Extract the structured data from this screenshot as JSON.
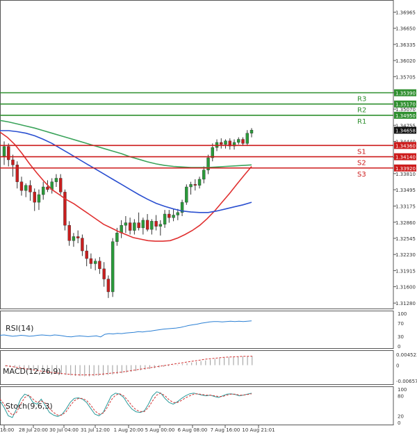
{
  "chart_data": [
    {
      "type": "candlestick",
      "title": "",
      "xlabel": "",
      "ylabel": "",
      "ylim": [
        1.3116,
        1.37203
      ],
      "y_ticks": [
        "1.36965",
        "1.36650",
        "1.36335",
        "1.36020",
        "1.35705",
        "1.35390",
        "1.35070",
        "1.34755",
        "1.34440",
        "1.34125",
        "1.33810",
        "1.33495",
        "1.33175",
        "1.32860",
        "1.32545",
        "1.32230",
        "1.31915",
        "1.31600",
        "1.31280"
      ],
      "x_ticks": [
        "16:00",
        "28 Jul 20:00",
        "30 Jul 04:00",
        "31 Jul 12:00",
        "1 Aug 20:00",
        "5 Aug 00:00",
        "6 Aug 08:00",
        "7 Aug 16:00",
        "10 Aug 21:01"
      ],
      "current_price": "1.34658",
      "levels": [
        {
          "name": "R3",
          "value": 1.3539,
          "label": "1.35390",
          "color": "#2f8f2f"
        },
        {
          "name": "R2",
          "value": 1.3517,
          "label": "1.35170",
          "color": "#2f8f2f"
        },
        {
          "name": "R1",
          "value": 1.3495,
          "label": "1.34950",
          "color": "#2f8f2f"
        },
        {
          "name": "S1",
          "value": 1.3436,
          "label": "1.34360",
          "color": "#cc1a1a"
        },
        {
          "name": "S2",
          "value": 1.3414,
          "label": "1.34140",
          "color": "#cc1a1a"
        },
        {
          "name": "S3",
          "value": 1.3392,
          "label": "1.33920",
          "color": "#cc1a1a"
        }
      ],
      "candles_ohlc": [
        [
          1.3415,
          1.3444,
          1.3398,
          1.3434
        ],
        [
          1.3434,
          1.344,
          1.3395,
          1.3408
        ],
        [
          1.3408,
          1.3418,
          1.3375,
          1.3398
        ],
        [
          1.3398,
          1.3405,
          1.3352,
          1.3365
        ],
        [
          1.3365,
          1.3375,
          1.3338,
          1.3348
        ],
        [
          1.3348,
          1.3362,
          1.3335,
          1.3358
        ],
        [
          1.3358,
          1.3368,
          1.3328,
          1.3345
        ],
        [
          1.3345,
          1.3352,
          1.3308,
          1.3325
        ],
        [
          1.3325,
          1.335,
          1.331,
          1.334
        ],
        [
          1.334,
          1.3365,
          1.333,
          1.3355
        ],
        [
          1.3355,
          1.3368,
          1.3345,
          1.335
        ],
        [
          1.335,
          1.3372,
          1.3342,
          1.3365
        ],
        [
          1.3365,
          1.338,
          1.3355,
          1.3372
        ],
        [
          1.3372,
          1.338,
          1.334,
          1.3345
        ],
        [
          1.3345,
          1.335,
          1.327,
          1.328
        ],
        [
          1.328,
          1.3288,
          1.324,
          1.325
        ],
        [
          1.325,
          1.3265,
          1.3238,
          1.3258
        ],
        [
          1.3258,
          1.327,
          1.3245,
          1.3255
        ],
        [
          1.3255,
          1.3262,
          1.322,
          1.323
        ],
        [
          1.323,
          1.3242,
          1.32,
          1.3215
        ],
        [
          1.3215,
          1.3225,
          1.3195,
          1.3205
        ],
        [
          1.3205,
          1.3215,
          1.3192,
          1.321
        ],
        [
          1.321,
          1.3218,
          1.3185,
          1.3195
        ],
        [
          1.3195,
          1.3208,
          1.316,
          1.3175
        ],
        [
          1.3175,
          1.3182,
          1.3138,
          1.315
        ],
        [
          1.315,
          1.3255,
          1.314,
          1.3248
        ],
        [
          1.3248,
          1.3275,
          1.324,
          1.3265
        ],
        [
          1.3265,
          1.329,
          1.3255,
          1.328
        ],
        [
          1.328,
          1.3298,
          1.3265,
          1.3285
        ],
        [
          1.3285,
          1.3295,
          1.3262,
          1.327
        ],
        [
          1.327,
          1.3292,
          1.3262,
          1.3285
        ],
        [
          1.3285,
          1.3305,
          1.327,
          1.3275
        ],
        [
          1.3275,
          1.3295,
          1.3262,
          1.329
        ],
        [
          1.329,
          1.3302,
          1.3268,
          1.3272
        ],
        [
          1.3272,
          1.3292,
          1.3262,
          1.3288
        ],
        [
          1.3288,
          1.33,
          1.327,
          1.3278
        ],
        [
          1.3278,
          1.329,
          1.326,
          1.3282
        ],
        [
          1.3282,
          1.331,
          1.3275,
          1.3302
        ],
        [
          1.3302,
          1.331,
          1.3285,
          1.3295
        ],
        [
          1.3295,
          1.3312,
          1.3288,
          1.33
        ],
        [
          1.33,
          1.3312,
          1.329,
          1.3305
        ],
        [
          1.3305,
          1.333,
          1.3298,
          1.3325
        ],
        [
          1.3325,
          1.336,
          1.332,
          1.3355
        ],
        [
          1.3355,
          1.3365,
          1.334,
          1.336
        ],
        [
          1.336,
          1.337,
          1.3348,
          1.3358
        ],
        [
          1.3358,
          1.3375,
          1.3352,
          1.337
        ],
        [
          1.337,
          1.3395,
          1.3362,
          1.3388
        ],
        [
          1.3388,
          1.3418,
          1.338,
          1.3412
        ],
        [
          1.3412,
          1.344,
          1.3405,
          1.3432
        ],
        [
          1.3432,
          1.3448,
          1.3425,
          1.3442
        ],
        [
          1.3442,
          1.345,
          1.343,
          1.3438
        ],
        [
          1.3438,
          1.3448,
          1.343,
          1.3445
        ],
        [
          1.3445,
          1.345,
          1.3428,
          1.3435
        ],
        [
          1.3435,
          1.3448,
          1.3428,
          1.3442
        ],
        [
          1.3442,
          1.3452,
          1.3438,
          1.3448
        ],
        [
          1.3448,
          1.3452,
          1.3435,
          1.344
        ],
        [
          1.344,
          1.3466,
          1.3435,
          1.346
        ],
        [
          1.346,
          1.347,
          1.3452,
          1.3466
        ]
      ],
      "moving_averages": [
        {
          "color": "#e03030",
          "values": [
            1.3462,
            1.3452,
            1.3438,
            1.342,
            1.34,
            1.3382,
            1.3365,
            1.335,
            1.334,
            1.333,
            1.3322,
            1.3312,
            1.3302,
            1.3292,
            1.3282,
            1.3275,
            1.3268,
            1.3262,
            1.3256,
            1.3253,
            1.325,
            1.3249,
            1.3249,
            1.325,
            1.3255,
            1.3262,
            1.327,
            1.328,
            1.3293,
            1.3308,
            1.3325,
            1.3342,
            1.336,
            1.3378,
            1.3395
          ]
        },
        {
          "color": "#2a4fd0",
          "values": [
            1.3465,
            1.3465,
            1.3463,
            1.346,
            1.3455,
            1.3448,
            1.344,
            1.343,
            1.342,
            1.341,
            1.34,
            1.339,
            1.338,
            1.337,
            1.336,
            1.335,
            1.334,
            1.3331,
            1.3323,
            1.3317,
            1.3312,
            1.3308,
            1.3306,
            1.3305,
            1.3305,
            1.3308,
            1.3312,
            1.3316,
            1.332,
            1.3325
          ]
        },
        {
          "color": "#3aa35a",
          "values": [
            1.3485,
            1.3482,
            1.3478,
            1.3474,
            1.347,
            1.3465,
            1.346,
            1.3455,
            1.345,
            1.3445,
            1.344,
            1.3435,
            1.343,
            1.3425,
            1.342,
            1.3414,
            1.3409,
            1.3404,
            1.34,
            1.3397,
            1.3395,
            1.3394,
            1.3393,
            1.3393,
            1.3393,
            1.3394,
            1.3395,
            1.3396,
            1.3397,
            1.3398
          ]
        }
      ]
    },
    {
      "type": "line",
      "title": "RSI(14)",
      "ylim": [
        0,
        100
      ],
      "y_ticks": [
        "100",
        "70",
        "30",
        "0"
      ],
      "series": [
        {
          "color": "#2a7fd4",
          "values": [
            33,
            34,
            32,
            30,
            31,
            33,
            32,
            30,
            31,
            33,
            34,
            33,
            32,
            34,
            33,
            31,
            29,
            28,
            30,
            31,
            30,
            29,
            30,
            31,
            28,
            36,
            38,
            37,
            39,
            38,
            40,
            41,
            42,
            44,
            43,
            45,
            46,
            48,
            50,
            52,
            53,
            54,
            55,
            57,
            60,
            63,
            65,
            67,
            70,
            72,
            74,
            75,
            75,
            74,
            75,
            76,
            75,
            76,
            75,
            76,
            77
          ]
        }
      ]
    },
    {
      "type": "bar",
      "title": "MACD(12,26,9)",
      "ylim": [
        -0.006574,
        0.004523
      ],
      "y_ticks": [
        "0.004523",
        "0",
        "-0.006574"
      ],
      "values": [
        -0.0005,
        -0.0008,
        -0.0011,
        -0.0014,
        -0.0017,
        -0.002,
        -0.0023,
        -0.0026,
        -0.0029,
        -0.0032,
        -0.0035,
        -0.0037,
        -0.0039,
        -0.0041,
        -0.0043,
        -0.0045,
        -0.0046,
        -0.0047,
        -0.0047,
        -0.0046,
        -0.0045,
        -0.0043,
        -0.0041,
        -0.0039,
        -0.0037,
        -0.0034,
        -0.0031,
        -0.0028,
        -0.0025,
        -0.0022,
        -0.0019,
        -0.0016,
        -0.0013,
        -0.001,
        -0.0007,
        -0.0004,
        -0.0001,
        0.0002,
        0.0005,
        0.0008,
        0.0011,
        0.0014,
        0.0017,
        0.002,
        0.0023,
        0.0026,
        0.0029,
        0.0031,
        0.0033,
        0.0035,
        0.0036,
        0.0037,
        0.0038,
        0.0038
      ],
      "signal": [
        -0.0002,
        -0.0005,
        -0.0008,
        -0.0011,
        -0.0014,
        -0.0017,
        -0.002,
        -0.0023,
        -0.0026,
        -0.0029,
        -0.0031,
        -0.0033,
        -0.0035,
        -0.0037,
        -0.0039,
        -0.004,
        -0.0041,
        -0.0041,
        -0.0041,
        -0.004,
        -0.0039,
        -0.0037,
        -0.0035,
        -0.0033,
        -0.0031,
        -0.0029,
        -0.0026,
        -0.0023,
        -0.002,
        -0.0017,
        -0.0014,
        -0.0011,
        -0.0008,
        -0.0005,
        -0.0002,
        0.0001,
        0.0004,
        0.0007,
        0.001,
        0.0013,
        0.0016,
        0.0019,
        0.0022,
        0.0025,
        0.0027,
        0.0029,
        0.0031,
        0.0033,
        0.0034,
        0.0035,
        0.0036,
        0.0037,
        0.0037,
        0.0038
      ]
    },
    {
      "type": "line",
      "title": "Stoch(9,6,3)",
      "ylim": [
        0,
        100
      ],
      "y_ticks": [
        "100",
        "80",
        "20",
        "0"
      ],
      "series": [
        {
          "color": "#2a9a9a",
          "values": [
            65,
            45,
            20,
            15,
            40,
            70,
            85,
            80,
            60,
            55,
            70,
            50,
            30,
            22,
            18,
            24,
            40,
            60,
            72,
            74,
            70,
            60,
            42,
            25,
            20,
            30,
            55,
            80,
            88,
            85,
            75,
            55,
            40,
            32,
            30,
            35,
            55,
            80,
            92,
            88,
            72,
            60,
            55,
            62,
            72,
            80,
            86,
            88,
            85,
            82,
            80,
            82,
            78,
            75,
            80,
            85,
            86,
            84,
            80,
            82,
            85,
            88
          ]
        },
        {
          "color": "#d03030",
          "values": [
            70,
            55,
            35,
            22,
            30,
            55,
            75,
            82,
            70,
            60,
            65,
            58,
            42,
            30,
            22,
            22,
            32,
            50,
            65,
            72,
            72,
            66,
            52,
            35,
            25,
            28,
            45,
            68,
            82,
            86,
            80,
            66,
            50,
            38,
            33,
            33,
            45,
            65,
            82,
            88,
            80,
            68,
            60,
            60,
            66,
            74,
            80,
            85,
            86,
            84,
            82,
            82,
            80,
            78,
            78,
            82,
            85,
            85,
            82,
            82,
            84,
            86
          ]
        }
      ]
    }
  ]
}
